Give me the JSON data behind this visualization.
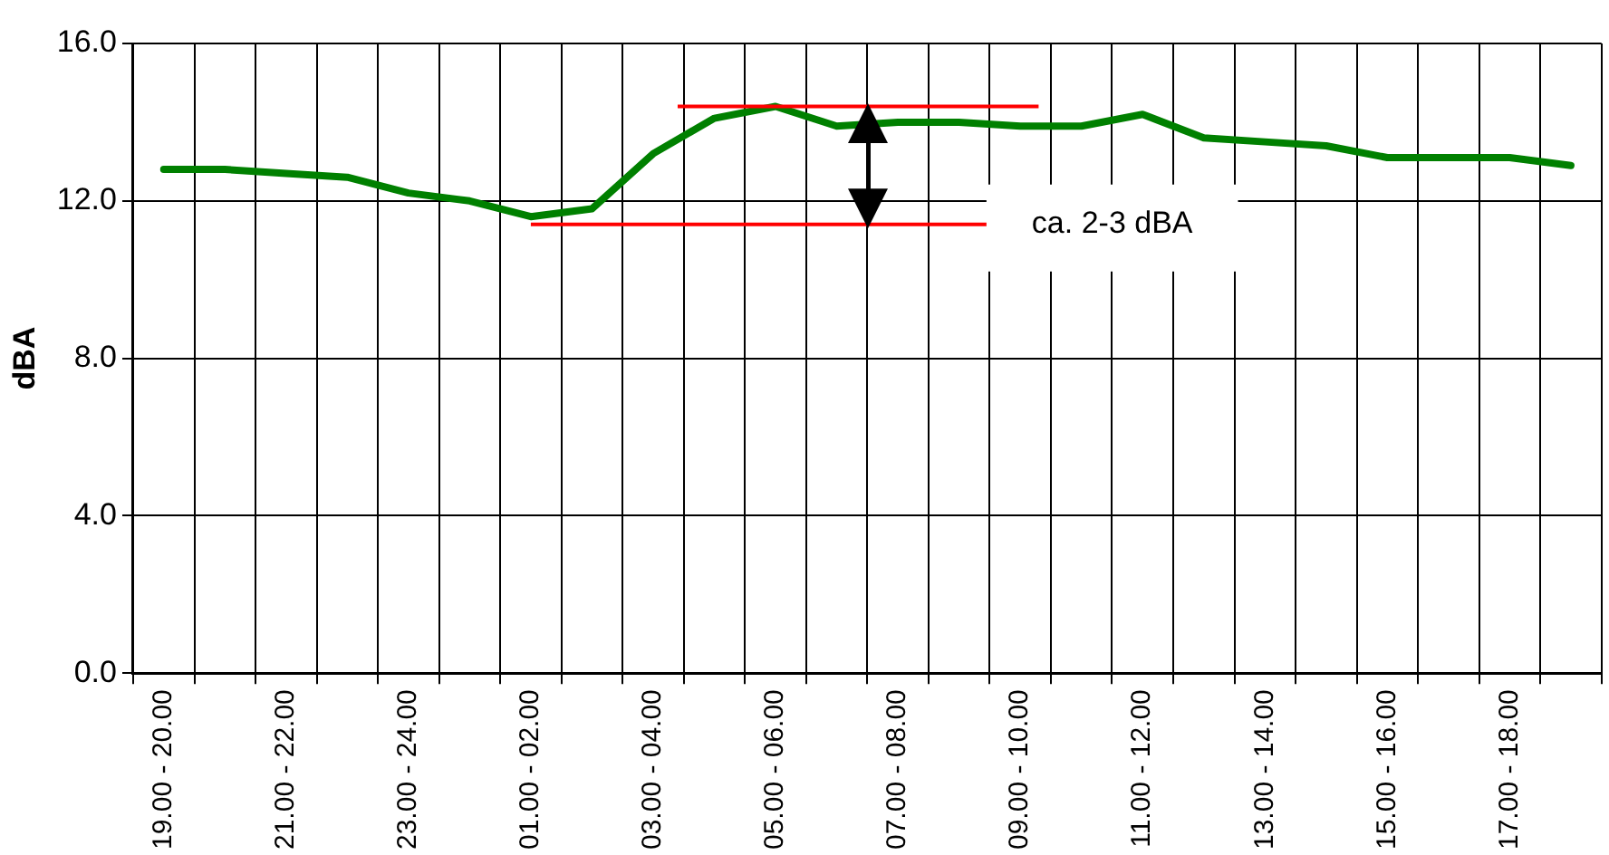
{
  "chart_data": {
    "type": "line",
    "ylabel": "dBA",
    "categories": [
      "19.00 - 20.00",
      null,
      "21.00 - 22.00",
      null,
      "23.00 - 24.00",
      null,
      "01.00 - 02.00",
      null,
      "03.00 - 04.00",
      null,
      "05.00 - 06.00",
      null,
      "07.00 - 08.00",
      null,
      "09.00 - 10.00",
      null,
      "11.00 - 12.00",
      null,
      "13.00 - 14.00",
      null,
      "15.00 - 16.00",
      null,
      "17.00 - 18.00",
      null
    ],
    "series": [
      {
        "color": "#008000",
        "values": [
          12.8,
          12.8,
          12.7,
          12.6,
          12.2,
          12.0,
          11.6,
          11.8,
          13.2,
          14.1,
          14.4,
          13.9,
          14.0,
          14.0,
          13.9,
          13.9,
          14.2,
          13.6,
          13.5,
          13.4,
          13.1,
          13.1,
          13.1,
          12.9
        ]
      }
    ],
    "ylim": [
      0,
      16
    ],
    "yticks": [
      {
        "value": 0,
        "label": "0.0"
      },
      {
        "value": 4,
        "label": "4.0"
      },
      {
        "value": 8,
        "label": "8.0"
      },
      {
        "value": 12,
        "label": "12.0"
      },
      {
        "value": 16,
        "label": "16.0"
      }
    ],
    "ref_lines": [
      {
        "axis": "y",
        "value": 14.4,
        "color": "#ff0000"
      },
      {
        "axis": "y",
        "value": 11.4,
        "color": "#ff0000"
      }
    ],
    "annotations": [
      "ca. 2-3 dBA"
    ],
    "grid": true,
    "legend": false,
    "marker": "none",
    "line_style": "solid"
  }
}
